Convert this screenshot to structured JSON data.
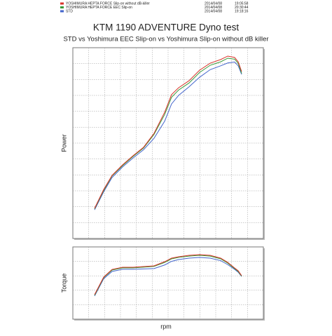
{
  "chart_data": [
    {
      "type": "line",
      "title": "KTM 1190 ADVENTURE  Dyno test",
      "subtitle": "STD vs Yoshimura EEC Slip-on vs Yoshimura Slip-on without dB killer",
      "y_label": "Power",
      "xlim": [
        0,
        100
      ],
      "ylim": [
        0,
        100
      ],
      "grid": true,
      "x": [
        11.4,
        16.2,
        20.6,
        26.1,
        31.6,
        37.1,
        42.6,
        48.2,
        51.8,
        55.5,
        61,
        66.5,
        72.1,
        77.6,
        81.3,
        84.9,
        86.8,
        88.6
      ],
      "series": [
        {
          "name": "YOSHIMURA HEPTA FORCE Slip-on without dB-killer",
          "date": "2014/04/08",
          "time": "19:05:58",
          "color": "#d9342b",
          "values": [
            15.8,
            25.7,
            33.1,
            38.6,
            43.4,
            47.8,
            55.1,
            66.2,
            75.4,
            79.0,
            82.7,
            88.2,
            91.9,
            93.8,
            95.6,
            94.9,
            92.6,
            87.5
          ]
        },
        {
          "name": "YOSHIMURA HEPTA FORCE EEC Slip-on",
          "date": "2014/04/08",
          "time": "20:30:44",
          "color": "#3a9a3a",
          "values": [
            15.5,
            25.2,
            32.8,
            38.2,
            43.0,
            47.4,
            54.5,
            65.0,
            74.0,
            77.8,
            81.5,
            87.0,
            90.8,
            92.6,
            94.5,
            94.0,
            91.8,
            86.5
          ]
        },
        {
          "name": "STD",
          "date": "2014/04/08",
          "time": "19:18:16",
          "color": "#4466cc",
          "values": [
            15.0,
            24.5,
            32.0,
            37.5,
            42.2,
            46.5,
            52.5,
            61.5,
            70.5,
            75.0,
            79.5,
            84.5,
            88.5,
            90.5,
            92.0,
            92.5,
            90.5,
            86.0
          ]
        }
      ]
    },
    {
      "type": "line",
      "y_label": "Torque",
      "x_label": "rpm",
      "xlim": [
        0,
        100
      ],
      "ylim": [
        0,
        100
      ],
      "grid": true,
      "x": [
        11.4,
        16.2,
        20.6,
        26.1,
        31.6,
        37.1,
        42.6,
        48.2,
        51.8,
        55.5,
        61,
        66.5,
        72.1,
        77.6,
        81.3,
        84.9,
        86.8,
        88.6
      ],
      "series": [
        {
          "color": "#d9342b",
          "values": [
            34,
            58.3,
            68.9,
            71.8,
            71.8,
            72.8,
            73.8,
            79.6,
            84.5,
            86.4,
            88.3,
            89.3,
            88.3,
            84.5,
            78.6,
            70.9,
            67,
            60.2
          ]
        },
        {
          "color": "#3a9a3a",
          "values": [
            33,
            57.5,
            68,
            71,
            71,
            72,
            73,
            78.5,
            83.5,
            85.5,
            87.3,
            88.3,
            87.3,
            83.5,
            77.6,
            70,
            66,
            59.5
          ]
        },
        {
          "color": "#4466cc",
          "values": [
            32,
            56,
            66,
            69,
            69,
            69.5,
            70,
            75,
            80,
            82.5,
            84.5,
            85.5,
            84.5,
            81,
            75.5,
            69,
            65,
            59
          ]
        }
      ]
    }
  ]
}
